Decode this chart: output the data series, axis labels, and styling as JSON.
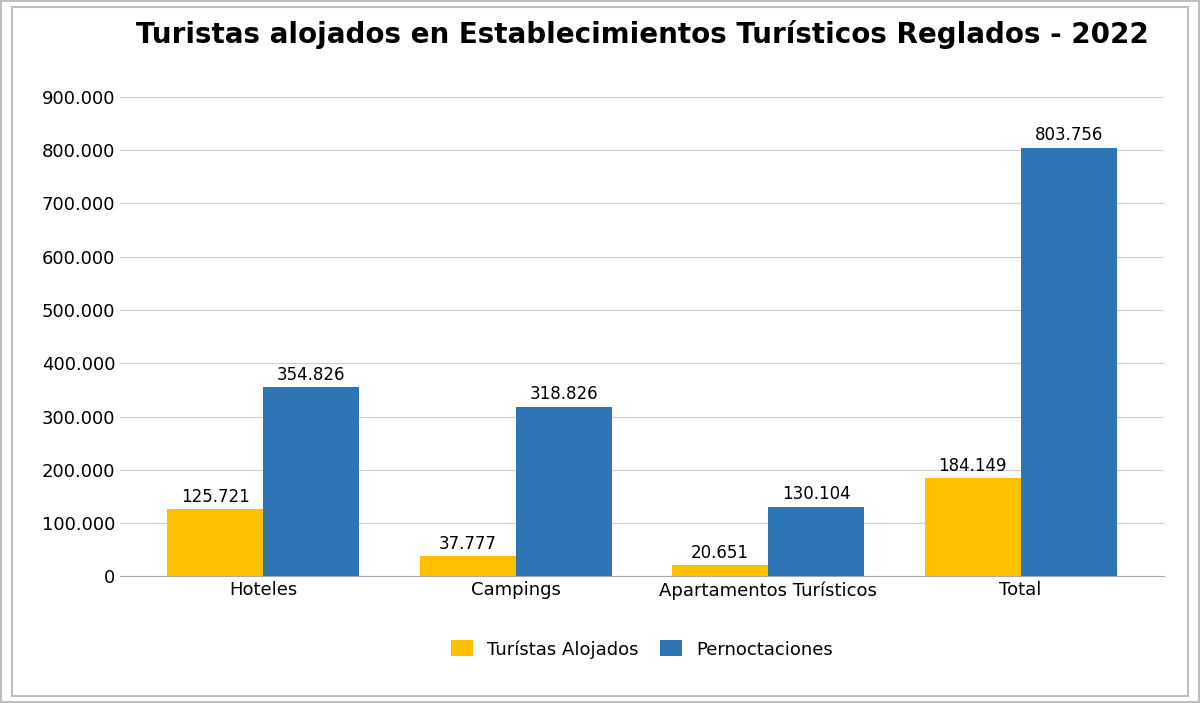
{
  "title": "Turistas alojados en Establecimientos Turísticos Reglados - 2022",
  "categories": [
    "Hoteles",
    "Campings",
    "Apartamentos Turísticos",
    "Total"
  ],
  "turistas_alojados": [
    125721,
    37777,
    20651,
    184149
  ],
  "pernoctaciones": [
    354826,
    318826,
    130104,
    803756
  ],
  "color_turistas": "#FFC000",
  "color_pernoctaciones": "#2E75B6",
  "legend_turistas": "Turístas Alojados",
  "legend_pernoctaciones": "Pernoctaciones",
  "ylim": [
    0,
    950000
  ],
  "yticks": [
    0,
    100000,
    200000,
    300000,
    400000,
    500000,
    600000,
    700000,
    800000,
    900000
  ],
  "background_color": "#FFFFFF",
  "figure_bg": "#F2F2F2",
  "bar_width": 0.38,
  "title_fontsize": 20,
  "tick_fontsize": 13,
  "label_fontsize": 13,
  "legend_fontsize": 13,
  "annotation_fontsize": 12,
  "grid_color": "#D0D0D0",
  "border_color": "#BFBFBF"
}
